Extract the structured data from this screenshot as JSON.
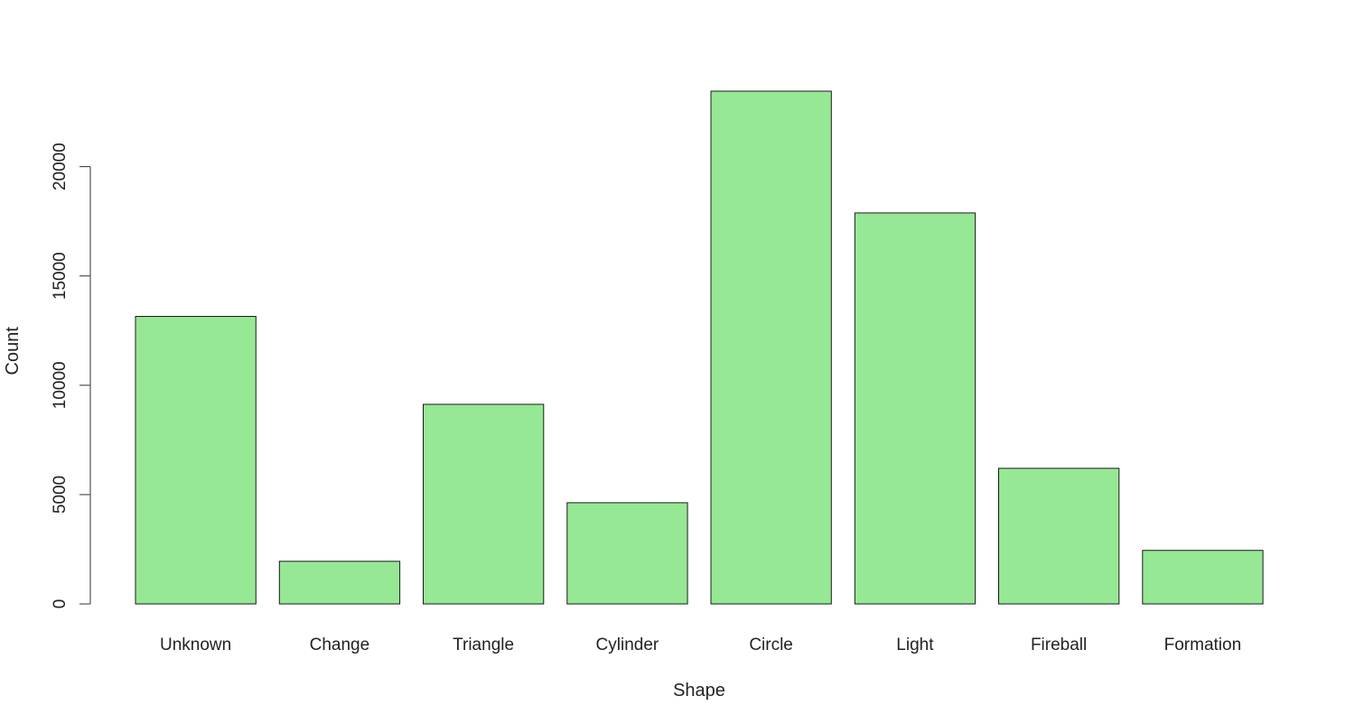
{
  "chart_data": {
    "type": "bar",
    "title": "",
    "xlabel": "Shape",
    "ylabel": "Count",
    "categories": [
      "Unknown",
      "Change",
      "Triangle",
      "Cylinder",
      "Circle",
      "Light",
      "Fireball",
      "Formation"
    ],
    "values": [
      13150,
      1950,
      9130,
      4630,
      23450,
      17880,
      6200,
      2450
    ],
    "ylim": [
      0,
      23450
    ],
    "yticks": [
      0,
      5000,
      10000,
      15000,
      20000
    ],
    "ytick_labels": [
      "0",
      "5000",
      "10000",
      "15000",
      "20000"
    ],
    "grid": false,
    "legend": "none",
    "bar_color": "#96e895",
    "bar_border_color": "#1a1a1a"
  }
}
